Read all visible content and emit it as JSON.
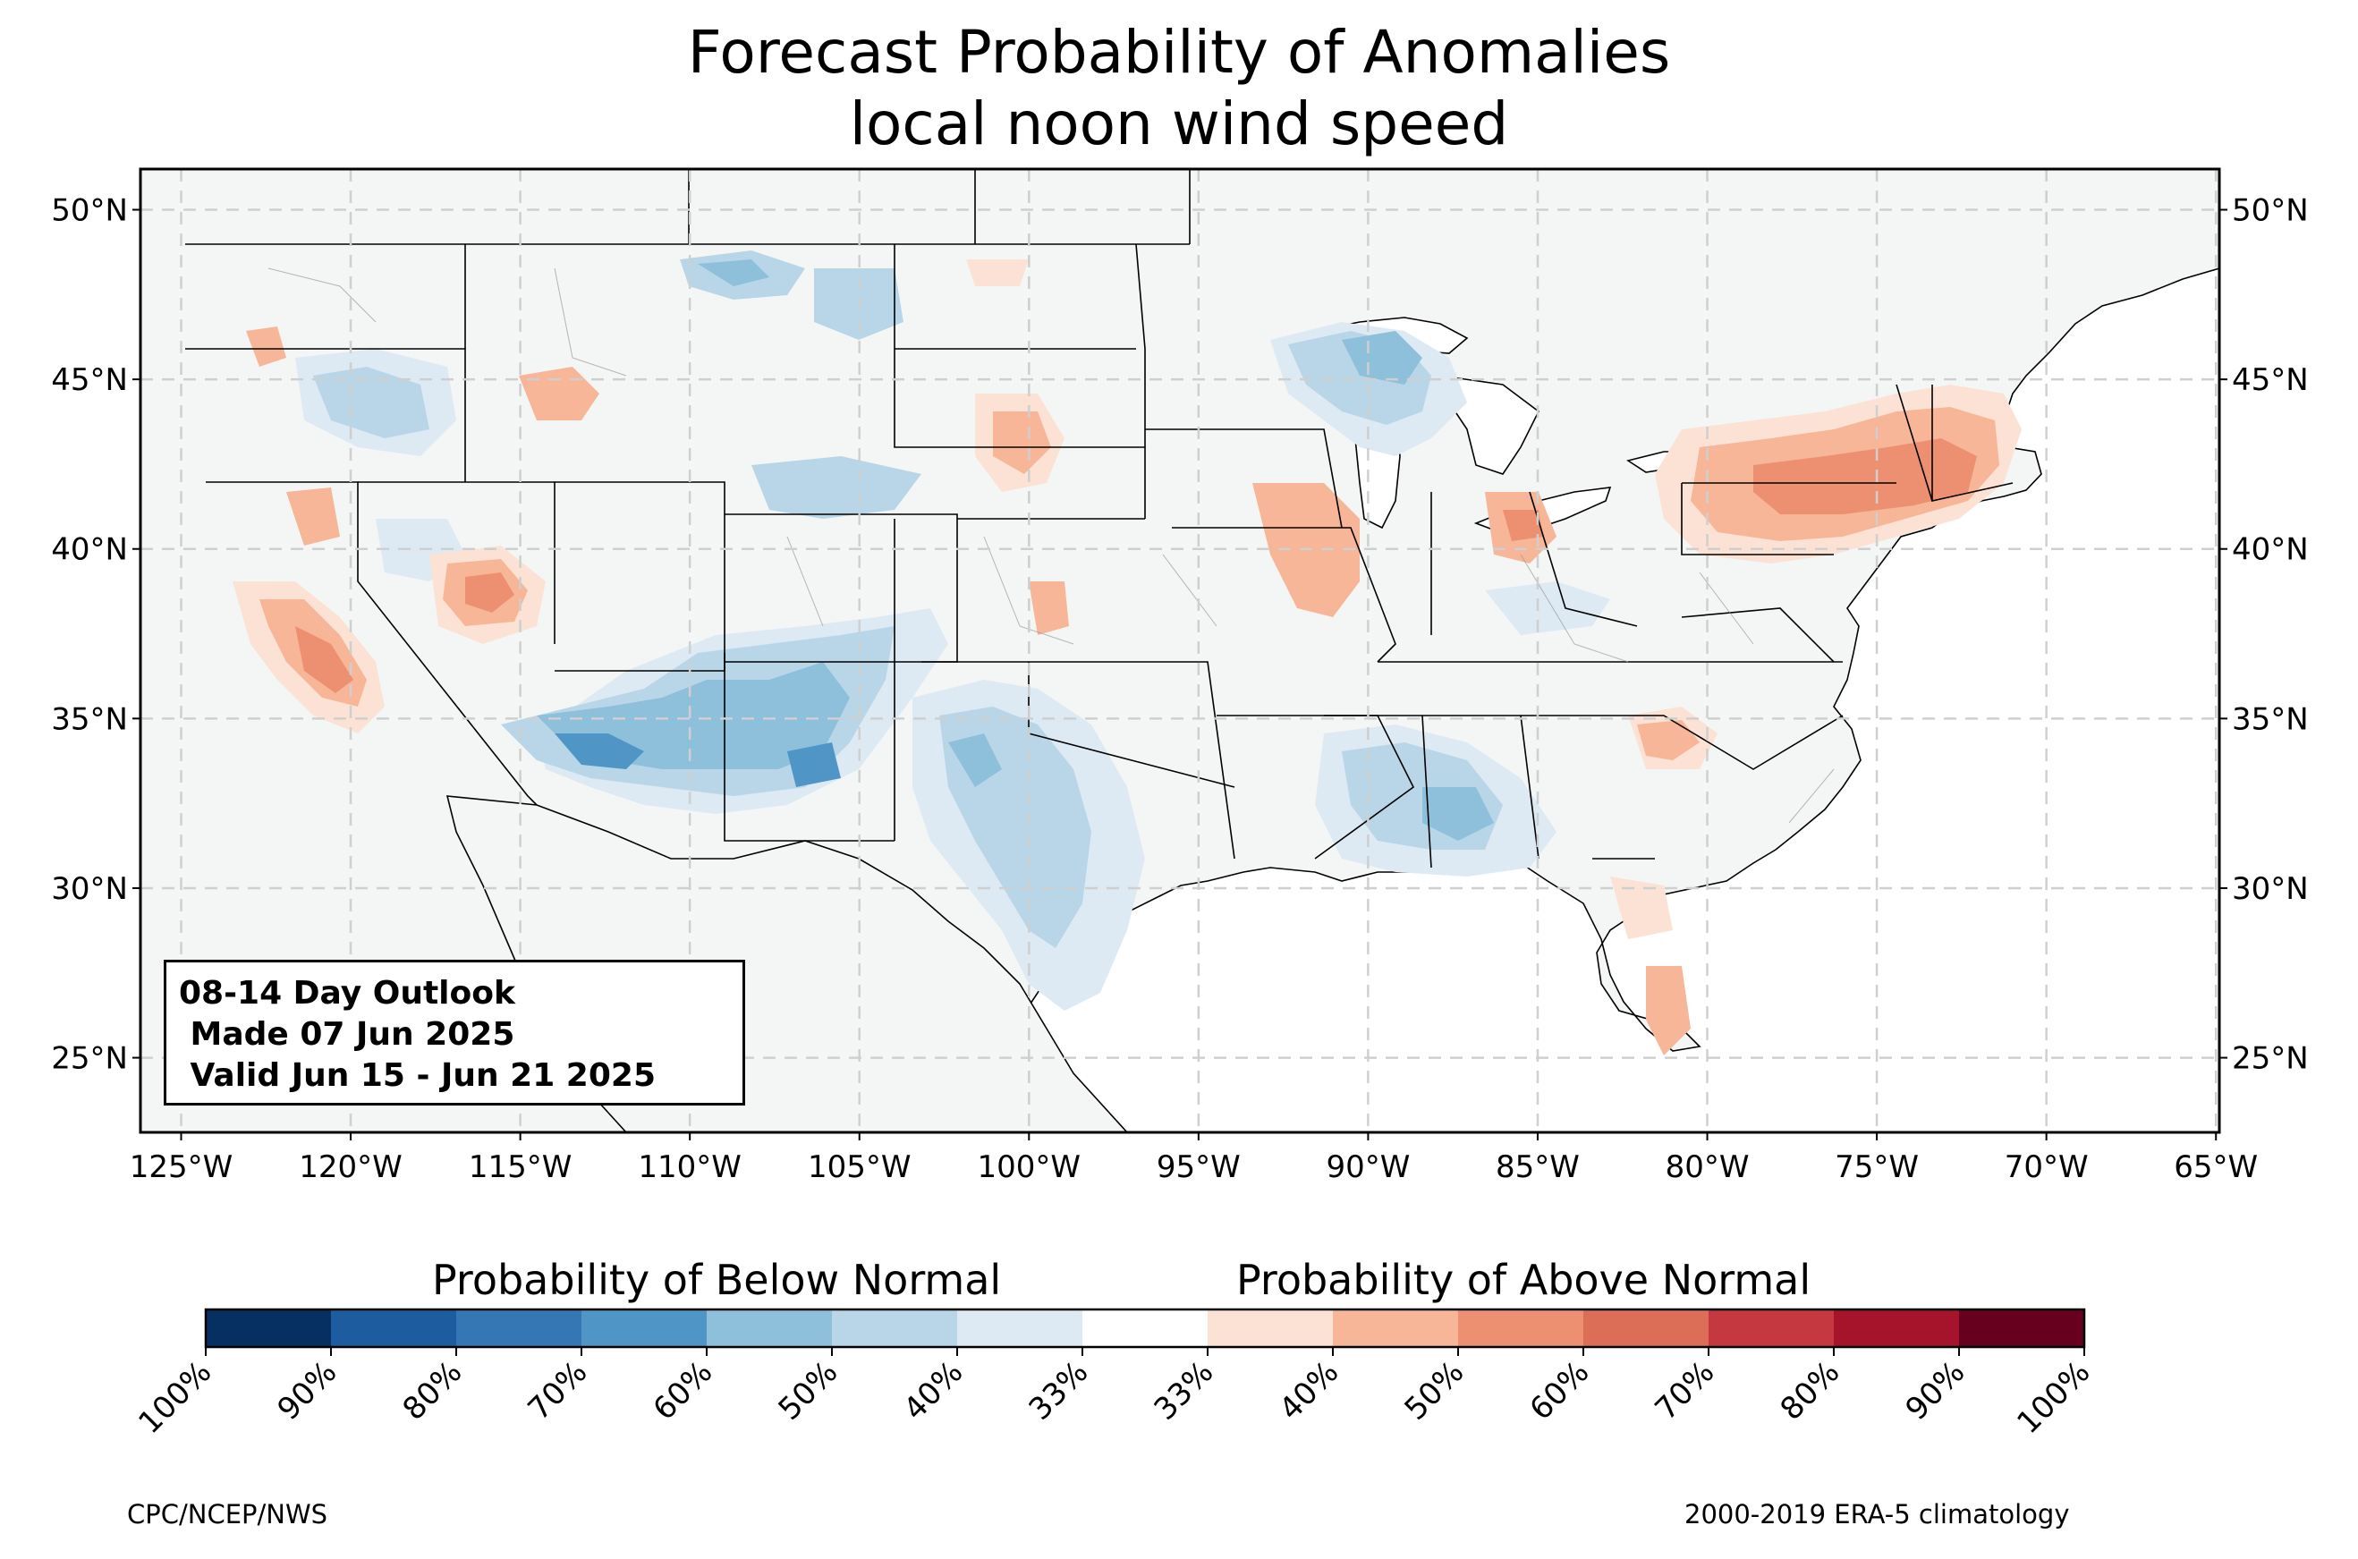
{
  "title": {
    "line1": "Forecast Probability of Anomalies",
    "line2": "local noon wind speed"
  },
  "infobox": {
    "line1": "08-14 Day Outlook",
    "line2": " Made 07 Jun 2025",
    "line3": " Valid Jun 15 - Jun 21 2025"
  },
  "axes": {
    "lat_labels": [
      "50°N",
      "45°N",
      "40°N",
      "35°N",
      "30°N",
      "25°N"
    ],
    "lon_labels": [
      "125°W",
      "120°W",
      "115°W",
      "110°W",
      "105°W",
      "100°W",
      "95°W",
      "90°W",
      "85°W",
      "80°W",
      "75°W",
      "70°W",
      "65°W"
    ],
    "lat_range": [
      22.8,
      51.2
    ],
    "lon_range": [
      -126.2,
      -64.9
    ],
    "grid": true
  },
  "colorbar": {
    "below_label": "Probability of Below Normal",
    "above_label": "Probability of Above Normal",
    "tick_labels": [
      "100%",
      "90%",
      "80%",
      "70%",
      "60%",
      "50%",
      "40%",
      "33%",
      "33%",
      "40%",
      "50%",
      "60%",
      "70%",
      "80%",
      "90%",
      "100%"
    ],
    "colors": [
      "#053061",
      "#1d5c9e",
      "#3576b4",
      "#4f95c6",
      "#8ebfdb",
      "#b8d6e8",
      "#dde9f3",
      "#ffffff",
      "#fbe2d4",
      "#f6b697",
      "#ec9071",
      "#dc6e57",
      "#c6383f",
      "#a5142a",
      "#67001f"
    ]
  },
  "footer": {
    "left": "CPC/NCEP/NWS",
    "right": "2000-2019 ERA-5 climatology"
  },
  "colors": {
    "land": "#f4f6f6",
    "grid": "#cfcfcf",
    "below_40": "#dde9f3",
    "below_50": "#b8d6e8",
    "below_60": "#8ebfdb",
    "below_70": "#4f95c6",
    "above_40": "#fbe2d4",
    "above_50": "#f6b697",
    "above_60": "#ec9071"
  }
}
